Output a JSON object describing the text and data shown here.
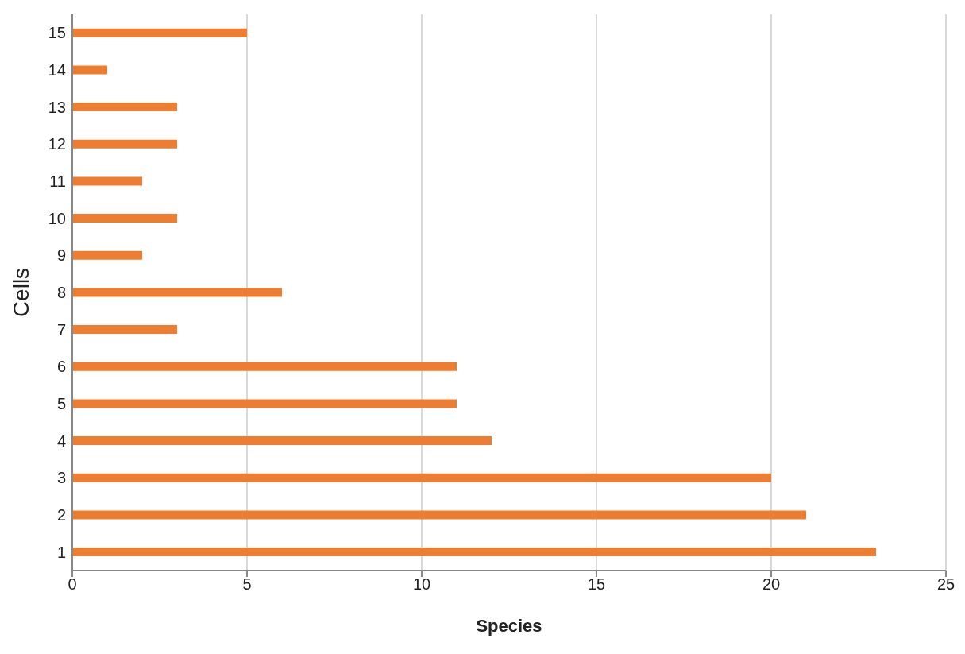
{
  "chart_data": {
    "type": "bar",
    "orientation": "horizontal",
    "xlabel": "Species",
    "ylabel": "Cells",
    "categories": [
      "15",
      "14",
      "13",
      "12",
      "11",
      "10",
      "9",
      "8",
      "7",
      "6",
      "5",
      "4",
      "3",
      "2",
      "1"
    ],
    "values": [
      5,
      1,
      3,
      3,
      2,
      3,
      2,
      6,
      3,
      11,
      11,
      12,
      20,
      21,
      23
    ],
    "color": "#ed7d31",
    "xlim": [
      0,
      25
    ],
    "xticks": [
      0,
      5,
      10,
      15,
      20,
      25
    ],
    "grid": "x",
    "legend": false
  }
}
